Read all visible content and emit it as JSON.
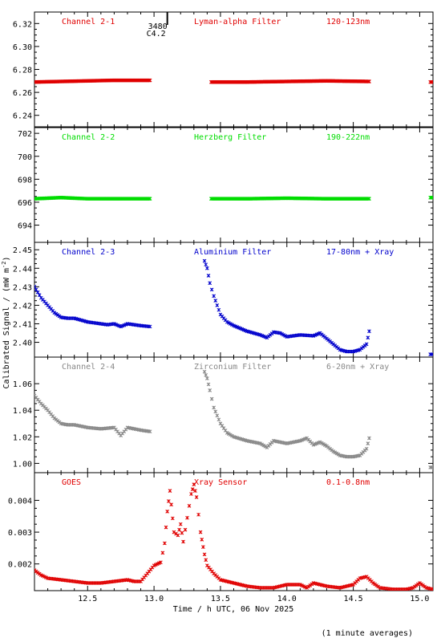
{
  "figure": {
    "ylabel_text": "Calibrated Signal / (mW m",
    "ylabel_sup": "-2",
    "ylabel_close": ")",
    "xlabel": "Time / h UTC, 06 Nov 2025",
    "footnote": "(1 minute averages)",
    "flare_class": "C4.2",
    "flare_number": "3480"
  },
  "chart_data": [
    {
      "type": "scatter",
      "label_left": "Channel 2-1",
      "label_mid": "Lyman-alpha Filter",
      "label_right": "120-123nm",
      "color": "#e00000",
      "ylim": [
        6.23,
        6.33
      ],
      "yticks": [
        6.24,
        6.26,
        6.28,
        6.3,
        6.32
      ],
      "ytick_labels": [
        "6.24",
        "6.26",
        "6.28",
        "6.30",
        "6.32"
      ],
      "series": [
        {
          "x": [
            12.1,
            12.3,
            12.5,
            12.7,
            12.97
          ],
          "y": [
            6.269,
            6.2695,
            6.27,
            6.2705,
            6.2705
          ]
        },
        {
          "x": [
            13.43,
            13.7,
            14.0,
            14.3,
            14.62
          ],
          "y": [
            6.269,
            6.269,
            6.2695,
            6.27,
            6.2695
          ]
        },
        {
          "x": [
            15.08,
            15.1
          ],
          "y": [
            6.269,
            6.269
          ]
        }
      ]
    },
    {
      "type": "scatter",
      "label_left": "Channel 2-2",
      "label_mid": "Herzberg Filter",
      "label_right": "190-222nm",
      "color": "#00dd00",
      "ylim": [
        692.5,
        702.5
      ],
      "yticks": [
        694,
        696,
        698,
        700,
        702
      ],
      "ytick_labels": [
        "694",
        "696",
        "698",
        "700",
        "702"
      ],
      "series": [
        {
          "x": [
            12.1,
            12.3,
            12.5,
            12.7,
            12.97
          ],
          "y": [
            696.3,
            696.4,
            696.3,
            696.3,
            696.3
          ]
        },
        {
          "x": [
            13.43,
            13.7,
            14.0,
            14.3,
            14.62
          ],
          "y": [
            696.3,
            696.3,
            696.35,
            696.3,
            696.3
          ]
        },
        {
          "x": [
            15.08,
            15.1
          ],
          "y": [
            696.4,
            696.4
          ]
        }
      ]
    },
    {
      "type": "scatter",
      "label_left": "Channel 2-3",
      "label_mid": "Aluminium Filter",
      "label_right": "17-80nm + Xray",
      "color": "#0000cc",
      "ylim": [
        2.392,
        2.454
      ],
      "yticks": [
        2.4,
        2.41,
        2.42,
        2.43,
        2.44,
        2.45
      ],
      "ytick_labels": [
        "2.40",
        "2.41",
        "2.42",
        "2.43",
        "2.44",
        "2.45"
      ],
      "series": [
        {
          "x": [
            12.1,
            12.15,
            12.2,
            12.25,
            12.3,
            12.35,
            12.4,
            12.5,
            12.6,
            12.65,
            12.7,
            12.75,
            12.8,
            12.9,
            12.97
          ],
          "y": [
            2.43,
            2.424,
            2.42,
            2.416,
            2.4135,
            2.413,
            2.413,
            2.411,
            2.41,
            2.4095,
            2.41,
            2.4085,
            2.41,
            2.409,
            2.4085
          ]
        },
        {
          "x": [
            13.38,
            13.4,
            13.42,
            13.45,
            13.5,
            13.55,
            13.6,
            13.7,
            13.8,
            13.85,
            13.9,
            13.95,
            14.0,
            14.1,
            14.2,
            14.25,
            14.3,
            14.35,
            14.4,
            14.45,
            14.5,
            14.55,
            14.6,
            14.62
          ],
          "y": [
            2.444,
            2.44,
            2.432,
            2.425,
            2.415,
            2.411,
            2.409,
            2.406,
            2.404,
            2.4025,
            2.4055,
            2.405,
            2.403,
            2.404,
            2.4035,
            2.405,
            2.402,
            2.399,
            2.396,
            2.395,
            2.395,
            2.396,
            2.399,
            2.406
          ]
        },
        {
          "x": [
            15.08,
            15.1
          ],
          "y": [
            2.3935,
            2.3935
          ]
        }
      ]
    },
    {
      "type": "scatter",
      "label_left": "Channel 2-4",
      "label_mid": "Zirconium Filter",
      "label_right": "6-20nm + Xray",
      "color": "#888888",
      "ylim": [
        0.993,
        1.08
      ],
      "yticks": [
        1.0,
        1.02,
        1.04,
        1.06
      ],
      "ytick_labels": [
        "1.00",
        "1.02",
        "1.04",
        "1.06"
      ],
      "series": [
        {
          "x": [
            12.1,
            12.15,
            12.2,
            12.25,
            12.3,
            12.35,
            12.4,
            12.5,
            12.6,
            12.7,
            12.75,
            12.8,
            12.9,
            12.97
          ],
          "y": [
            1.051,
            1.045,
            1.04,
            1.034,
            1.03,
            1.029,
            1.029,
            1.027,
            1.026,
            1.027,
            1.021,
            1.027,
            1.025,
            1.024
          ]
        },
        {
          "x": [
            13.38,
            13.4,
            13.42,
            13.45,
            13.5,
            13.55,
            13.6,
            13.7,
            13.8,
            13.85,
            13.9,
            13.95,
            14.0,
            14.1,
            14.15,
            14.2,
            14.25,
            14.3,
            14.35,
            14.4,
            14.45,
            14.5,
            14.55,
            14.6,
            14.62
          ],
          "y": [
            1.069,
            1.064,
            1.055,
            1.042,
            1.03,
            1.023,
            1.02,
            1.017,
            1.015,
            1.012,
            1.017,
            1.016,
            1.015,
            1.017,
            1.019,
            1.014,
            1.016,
            1.013,
            1.009,
            1.006,
            1.005,
            1.005,
            1.006,
            1.011,
            1.019
          ]
        },
        {
          "x": [
            15.08,
            15.1
          ],
          "y": [
            0.997,
            0.997
          ]
        }
      ]
    },
    {
      "type": "scatter",
      "label_left": "GOES",
      "label_mid": "Xray Sensor",
      "label_right": "0.1-0.8nm",
      "color": "#e00000",
      "ylim": [
        0.00116,
        0.00487
      ],
      "yticks": [
        0.002,
        0.003,
        0.004
      ],
      "ytick_labels": [
        "0.002",
        "0.003",
        "0.004"
      ],
      "series": [
        {
          "x": [
            12.1,
            12.15,
            12.2,
            12.3,
            12.4,
            12.5,
            12.6,
            12.7,
            12.8,
            12.85,
            12.9,
            12.95,
            13.0,
            13.05,
            13.08,
            13.1,
            13.12,
            13.15,
            13.18,
            13.2,
            13.22,
            13.25,
            13.28,
            13.3,
            13.32,
            13.35,
            13.38,
            13.4,
            13.45,
            13.5,
            13.6,
            13.7,
            13.8,
            13.9,
            14.0,
            14.1,
            14.15,
            14.2,
            14.3,
            14.4,
            14.5,
            14.55,
            14.6,
            14.65,
            14.7,
            14.8,
            14.9,
            14.95,
            15.0,
            15.05,
            15.1
          ],
          "y": [
            0.0018,
            0.00165,
            0.00155,
            0.0015,
            0.00145,
            0.0014,
            0.0014,
            0.00145,
            0.0015,
            0.00145,
            0.00145,
            0.0017,
            0.00195,
            0.00205,
            0.00265,
            0.00365,
            0.0043,
            0.003,
            0.0029,
            0.00325,
            0.0027,
            0.00345,
            0.0042,
            0.0045,
            0.0041,
            0.003,
            0.0023,
            0.00195,
            0.0017,
            0.0015,
            0.0014,
            0.0013,
            0.00125,
            0.00125,
            0.00135,
            0.00135,
            0.00125,
            0.0014,
            0.0013,
            0.00125,
            0.00135,
            0.00155,
            0.0016,
            0.0014,
            0.00125,
            0.0012,
            0.0012,
            0.00125,
            0.0014,
            0.00125,
            0.0012
          ]
        }
      ]
    }
  ],
  "xaxis": {
    "xlim": [
      12.1,
      15.1
    ],
    "xticks": [
      12.5,
      13.0,
      13.5,
      14.0,
      14.5,
      15.0
    ],
    "xtick_labels": [
      "12.5",
      "13.0",
      "13.5",
      "14.0",
      "14.5",
      "15.0"
    ],
    "flare_time": 13.1
  }
}
